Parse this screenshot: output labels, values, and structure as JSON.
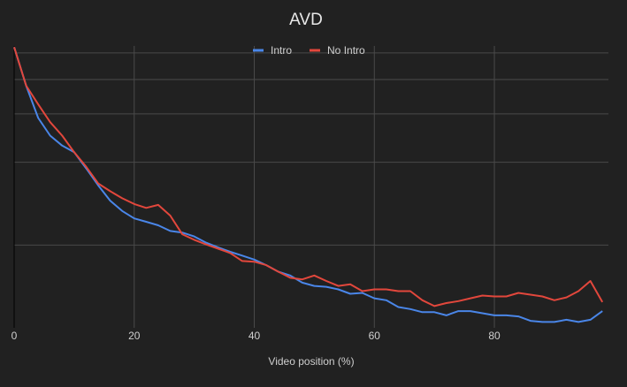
{
  "chart_data": {
    "type": "line",
    "title": "AVD",
    "x_label": "Video position (%)",
    "x": [
      0,
      2,
      4,
      6,
      8,
      10,
      12,
      14,
      16,
      18,
      20,
      22,
      24,
      26,
      28,
      30,
      32,
      34,
      36,
      38,
      40,
      42,
      44,
      46,
      48,
      50,
      52,
      54,
      56,
      58,
      60,
      62,
      64,
      66,
      68,
      70,
      72,
      74,
      76,
      78,
      80,
      82,
      84,
      86,
      88,
      90,
      92,
      94,
      96,
      98
    ],
    "series": [
      {
        "name": "Intro",
        "color": "#4a86e8",
        "values": [
          105,
          76,
          58,
          50,
          46,
          43.5,
          38,
          33,
          29,
          26.6,
          25,
          24.3,
          23.6,
          22.5,
          22.2,
          21.5,
          20.4,
          19.6,
          18.9,
          18.3,
          17.7,
          16.9,
          16,
          15.5,
          14.6,
          14.2,
          14.1,
          13.8,
          13.3,
          13.4,
          12.8,
          12.6,
          11.9,
          11.7,
          11.4,
          11.4,
          11.1,
          11.5,
          11.5,
          11.3,
          11.1,
          11.1,
          11,
          10.6,
          10.5,
          10.5,
          10.7,
          10.5,
          10.7,
          11.5
        ]
      },
      {
        "name": "No Intro",
        "color": "#e2473c",
        "values": [
          105,
          76,
          65,
          56,
          50,
          43.5,
          38.5,
          33.5,
          31.4,
          29.6,
          28.2,
          27.3,
          28,
          25.6,
          21.9,
          20.9,
          20.1,
          19.4,
          18.7,
          17.5,
          17.4,
          16.9,
          16,
          15.2,
          15,
          15.5,
          14.8,
          14.2,
          14.4,
          13.6,
          13.8,
          13.8,
          13.6,
          13.6,
          12.6,
          12,
          12.3,
          12.5,
          12.8,
          13.1,
          13,
          13,
          13.4,
          13.2,
          13,
          12.6,
          12.9,
          13.6,
          14.8,
          12.4
        ]
      }
    ],
    "xlim": [
      0,
      99
    ],
    "xticks": [
      0,
      20,
      40,
      60,
      80
    ],
    "ylim": [
      10,
      106
    ],
    "yticks": [
      20,
      40,
      60,
      80,
      100
    ],
    "ylog": true,
    "ytick_labels_shown": false,
    "grid": true,
    "legend": "top"
  }
}
